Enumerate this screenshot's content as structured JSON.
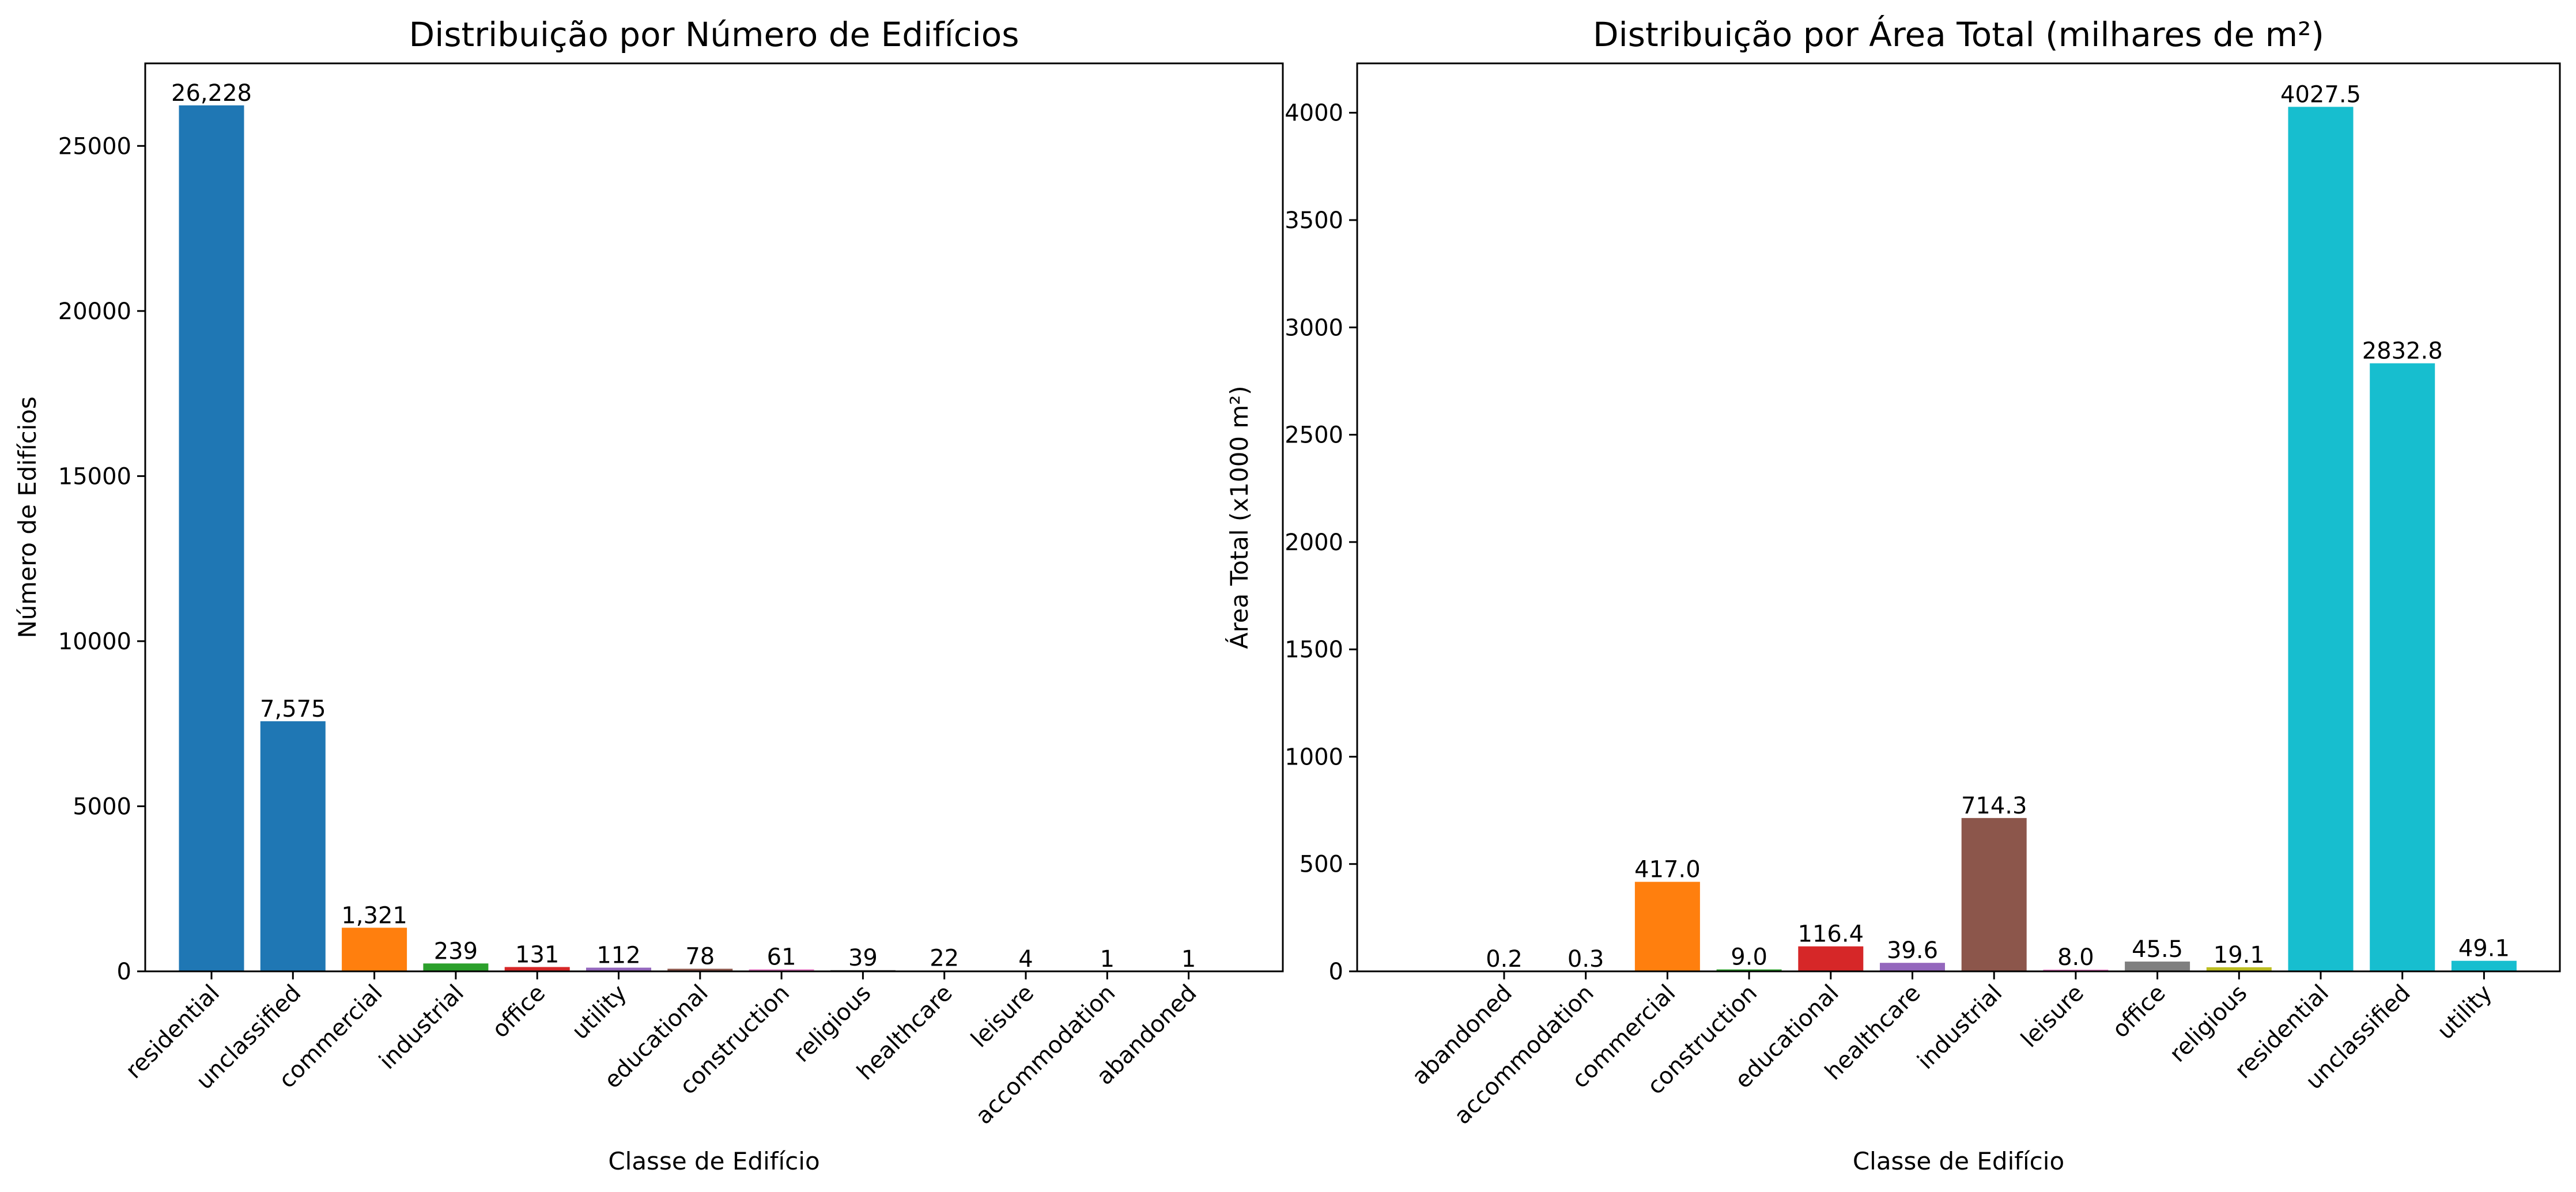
{
  "chart_data": [
    {
      "type": "bar",
      "title": "Distribuição por Número de Edifícios",
      "xlabel": "Classe de Edifício",
      "ylabel": "Número de Edifícios",
      "ylim": [
        0,
        27500
      ],
      "yticks": [
        0,
        5000,
        10000,
        15000,
        20000,
        25000
      ],
      "grid": false,
      "categories": [
        "residential",
        "unclassified",
        "commercial",
        "industrial",
        "office",
        "utility",
        "educational",
        "construction",
        "religious",
        "healthcare",
        "leisure",
        "accommodation",
        "abandoned"
      ],
      "values": [
        26228,
        7575,
        1321,
        239,
        131,
        112,
        78,
        61,
        39,
        22,
        4,
        1,
        1
      ],
      "value_labels": [
        "26,228",
        "7,575",
        "1,321",
        "239",
        "131",
        "112",
        "78",
        "61",
        "39",
        "22",
        "4",
        "1",
        "1"
      ],
      "colors": [
        "#1f77b4",
        "#1f77b4",
        "#ff7f0e",
        "#2ca02c",
        "#d62728",
        "#9467bd",
        "#8c564b",
        "#e377c2",
        "#7f7f7f",
        "#bcbd22",
        "#17becf",
        "#1f77b4",
        "#1f77b4"
      ]
    },
    {
      "type": "bar",
      "title": "Distribuição por Área Total (milhares de m²)",
      "xlabel": "Classe de Edifício",
      "ylabel": "Área Total (x1000 m²)",
      "ylim": [
        0,
        4230
      ],
      "yticks": [
        0,
        500,
        1000,
        1500,
        2000,
        2500,
        3000,
        3500,
        4000
      ],
      "grid": false,
      "categories": [
        "abandoned",
        "accommodation",
        "commercial",
        "construction",
        "educational",
        "healthcare",
        "industrial",
        "leisure",
        "office",
        "religious",
        "residential",
        "unclassified",
        "utility"
      ],
      "values": [
        0.2,
        0.3,
        417.0,
        9.0,
        116.4,
        39.6,
        714.3,
        8.0,
        45.5,
        19.1,
        4027.5,
        2832.8,
        49.1
      ],
      "value_labels": [
        "0.2",
        "0.3",
        "417.0",
        "9.0",
        "116.4",
        "39.6",
        "714.3",
        "8.0",
        "45.5",
        "19.1",
        "4027.5",
        "2832.8",
        "49.1"
      ],
      "colors": [
        "#1f77b4",
        "#1f77b4",
        "#ff7f0e",
        "#2ca02c",
        "#d62728",
        "#9467bd",
        "#8c564b",
        "#e377c2",
        "#7f7f7f",
        "#bcbd22",
        "#17becf",
        "#17becf",
        "#17becf"
      ]
    }
  ]
}
